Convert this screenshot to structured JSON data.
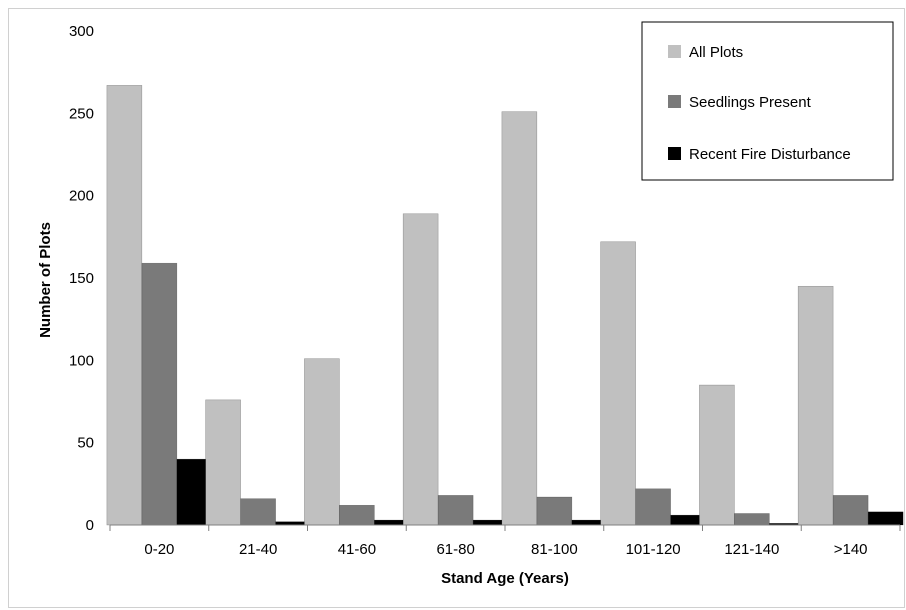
{
  "chart_data": {
    "type": "bar",
    "xlabel": "Stand Age (Years)",
    "ylabel": "Number of Plots",
    "ylim": [
      0,
      300
    ],
    "yticks": [
      0,
      50,
      100,
      150,
      200,
      250,
      300
    ],
    "grid": false,
    "legend_position": "top-right",
    "categories": [
      "0-20",
      "21-40",
      "41-60",
      "61-80",
      "81-100",
      "101-120",
      "121-140",
      ">140"
    ],
    "series": [
      {
        "name": "All Plots",
        "color": "#c0c0c0",
        "values": [
          267,
          76,
          101,
          189,
          251,
          172,
          85,
          145
        ]
      },
      {
        "name": "Seedlings Present",
        "color": "#7a7a7a",
        "values": [
          159,
          16,
          12,
          18,
          17,
          22,
          7,
          18
        ]
      },
      {
        "name": "Recent Fire Disturbance",
        "color": "#000000",
        "values": [
          40,
          2,
          3,
          3,
          3,
          6,
          1,
          8
        ]
      }
    ]
  }
}
